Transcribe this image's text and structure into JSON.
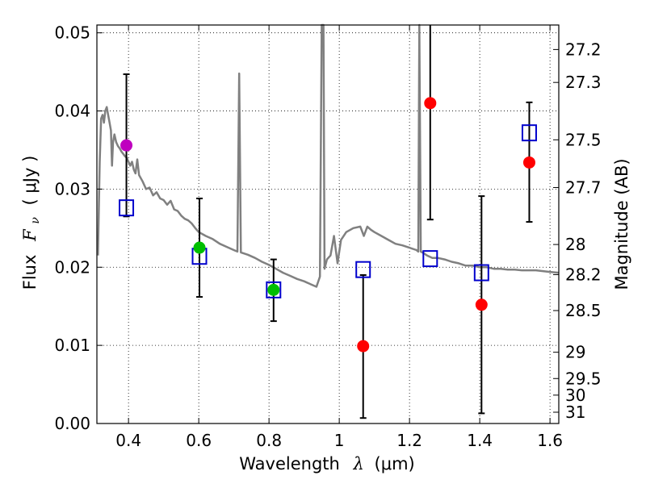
{
  "chart_data": {
    "type": "scatter",
    "xlabel": {
      "prefix": "Wavelength",
      "symbol": "λ",
      "unit": "(μm)"
    },
    "ylabel": {
      "prefix": "Flux",
      "symbol": "F",
      "subscript": "ν",
      "unit": "( μJy )"
    },
    "ylabel_right": "Magnitude (AB)",
    "xlim": [
      0.31,
      1.625
    ],
    "ylim": [
      0.0,
      0.051
    ],
    "grid": true,
    "x_ticks": [
      {
        "value": 0.4,
        "label": "0.4"
      },
      {
        "value": 0.6,
        "label": "0.6"
      },
      {
        "value": 0.8,
        "label": "0.8"
      },
      {
        "value": 1.0,
        "label": "1"
      },
      {
        "value": 1.2,
        "label": "1.2"
      },
      {
        "value": 1.4,
        "label": "1.4"
      },
      {
        "value": 1.6,
        "label": "1.6"
      }
    ],
    "y_ticks": [
      {
        "value": 0.0,
        "label": "0.00"
      },
      {
        "value": 0.01,
        "label": "0.01"
      },
      {
        "value": 0.02,
        "label": "0.02"
      },
      {
        "value": 0.03,
        "label": "0.03"
      },
      {
        "value": 0.04,
        "label": "0.04"
      },
      {
        "value": 0.05,
        "label": "0.05"
      }
    ],
    "right_ticks": [
      {
        "value": 27.2,
        "label": "27.2"
      },
      {
        "value": 27.3,
        "label": "27.3"
      },
      {
        "value": 27.5,
        "label": "27.5"
      },
      {
        "value": 27.7,
        "label": "27.7"
      },
      {
        "value": 28.0,
        "label": "28"
      },
      {
        "value": 28.2,
        "label": "28.2"
      },
      {
        "value": 28.5,
        "label": "28.5"
      },
      {
        "value": 29.0,
        "label": "29"
      },
      {
        "value": 29.5,
        "label": "29.5"
      },
      {
        "value": 30.0,
        "label": "30"
      },
      {
        "value": 31.0,
        "label": "31"
      }
    ],
    "colors": {
      "model": "#808080",
      "model_points": "#0000cc",
      "measured_violet": "#bf00bf",
      "measured_green": "#00bf00",
      "measured_red": "#ff0000",
      "errorbar": "#000000",
      "grid": "#000000"
    },
    "model_spectrum": [
      [
        0.313,
        0.0215
      ],
      [
        0.318,
        0.0335
      ],
      [
        0.322,
        0.039
      ],
      [
        0.326,
        0.0395
      ],
      [
        0.33,
        0.0385
      ],
      [
        0.334,
        0.04
      ],
      [
        0.338,
        0.0405
      ],
      [
        0.342,
        0.0395
      ],
      [
        0.346,
        0.0385
      ],
      [
        0.35,
        0.0375
      ],
      [
        0.353,
        0.033
      ],
      [
        0.356,
        0.036
      ],
      [
        0.36,
        0.037
      ],
      [
        0.365,
        0.036
      ],
      [
        0.37,
        0.0355
      ],
      [
        0.375,
        0.0352
      ],
      [
        0.38,
        0.0348
      ],
      [
        0.385,
        0.0345
      ],
      [
        0.39,
        0.0342
      ],
      [
        0.395,
        0.034
      ],
      [
        0.4,
        0.0335
      ],
      [
        0.405,
        0.033
      ],
      [
        0.41,
        0.0335
      ],
      [
        0.415,
        0.0325
      ],
      [
        0.42,
        0.032
      ],
      [
        0.425,
        0.0338
      ],
      [
        0.43,
        0.0318
      ],
      [
        0.44,
        0.031
      ],
      [
        0.45,
        0.03
      ],
      [
        0.46,
        0.0302
      ],
      [
        0.47,
        0.0292
      ],
      [
        0.48,
        0.0296
      ],
      [
        0.49,
        0.0288
      ],
      [
        0.5,
        0.0286
      ],
      [
        0.51,
        0.028
      ],
      [
        0.52,
        0.0285
      ],
      [
        0.53,
        0.0274
      ],
      [
        0.54,
        0.0272
      ],
      [
        0.55,
        0.0266
      ],
      [
        0.56,
        0.0262
      ],
      [
        0.57,
        0.026
      ],
      [
        0.58,
        0.0256
      ],
      [
        0.59,
        0.025
      ],
      [
        0.6,
        0.0245
      ],
      [
        0.62,
        0.024
      ],
      [
        0.64,
        0.0236
      ],
      [
        0.66,
        0.023
      ],
      [
        0.68,
        0.0226
      ],
      [
        0.7,
        0.0222
      ],
      [
        0.71,
        0.022
      ],
      [
        0.715,
        0.0448
      ],
      [
        0.72,
        0.0219
      ],
      [
        0.74,
        0.0216
      ],
      [
        0.76,
        0.0212
      ],
      [
        0.78,
        0.0207
      ],
      [
        0.8,
        0.0203
      ],
      [
        0.82,
        0.0198
      ],
      [
        0.84,
        0.0193
      ],
      [
        0.86,
        0.0189
      ],
      [
        0.88,
        0.0185
      ],
      [
        0.9,
        0.0182
      ],
      [
        0.92,
        0.0178
      ],
      [
        0.935,
        0.0175
      ],
      [
        0.945,
        0.0188
      ],
      [
        0.95,
        0.051
      ],
      [
        0.955,
        0.051
      ],
      [
        0.958,
        0.0198
      ],
      [
        0.965,
        0.021
      ],
      [
        0.975,
        0.0215
      ],
      [
        0.985,
        0.024
      ],
      [
        0.995,
        0.0205
      ],
      [
        1.005,
        0.0235
      ],
      [
        1.02,
        0.0245
      ],
      [
        1.04,
        0.025
      ],
      [
        1.06,
        0.0252
      ],
      [
        1.07,
        0.024
      ],
      [
        1.08,
        0.0252
      ],
      [
        1.09,
        0.0248
      ],
      [
        1.1,
        0.0245
      ],
      [
        1.12,
        0.024
      ],
      [
        1.14,
        0.0235
      ],
      [
        1.16,
        0.023
      ],
      [
        1.18,
        0.0228
      ],
      [
        1.2,
        0.0225
      ],
      [
        1.22,
        0.0222
      ],
      [
        1.225,
        0.022
      ],
      [
        1.228,
        0.051
      ],
      [
        1.232,
        0.022
      ],
      [
        1.24,
        0.0218
      ],
      [
        1.25,
        0.0215
      ],
      [
        1.265,
        0.0212
      ],
      [
        1.28,
        0.0212
      ],
      [
        1.3,
        0.021
      ],
      [
        1.32,
        0.0207
      ],
      [
        1.34,
        0.0205
      ],
      [
        1.36,
        0.0202
      ],
      [
        1.38,
        0.0202
      ],
      [
        1.4,
        0.02
      ],
      [
        1.42,
        0.02
      ],
      [
        1.44,
        0.0198
      ],
      [
        1.46,
        0.0198
      ],
      [
        1.48,
        0.0197
      ],
      [
        1.5,
        0.0197
      ],
      [
        1.52,
        0.0196
      ],
      [
        1.54,
        0.0196
      ],
      [
        1.56,
        0.0196
      ],
      [
        1.58,
        0.0195
      ],
      [
        1.6,
        0.0194
      ],
      [
        1.625,
        0.0193
      ]
    ],
    "model_points": [
      {
        "x": 0.394,
        "y": 0.0276
      },
      {
        "x": 0.602,
        "y": 0.0214
      },
      {
        "x": 0.813,
        "y": 0.0171
      },
      {
        "x": 1.068,
        "y": 0.0197
      },
      {
        "x": 1.259,
        "y": 0.0211
      },
      {
        "x": 1.405,
        "y": 0.0193
      },
      {
        "x": 1.541,
        "y": 0.0372
      }
    ],
    "measured_points": [
      {
        "x": 0.394,
        "y": 0.0356,
        "ylo": 0.0265,
        "yhi": 0.0447,
        "color": "measured_violet"
      },
      {
        "x": 0.602,
        "y": 0.0225,
        "ylo": 0.0162,
        "yhi": 0.0288,
        "color": "measured_green"
      },
      {
        "x": 0.813,
        "y": 0.0171,
        "ylo": 0.0131,
        "yhi": 0.021,
        "color": "measured_green"
      },
      {
        "x": 1.068,
        "y": 0.0099,
        "ylo": 0.0007,
        "yhi": 0.019,
        "color": "measured_red"
      },
      {
        "x": 1.259,
        "y": 0.041,
        "ylo": 0.0261,
        "yhi": 0.051,
        "color": "measured_red"
      },
      {
        "x": 1.405,
        "y": 0.0152,
        "ylo": 0.0013,
        "yhi": 0.0291,
        "color": "measured_red"
      },
      {
        "x": 1.541,
        "y": 0.0334,
        "ylo": 0.0258,
        "yhi": 0.0411,
        "color": "measured_red"
      }
    ]
  }
}
